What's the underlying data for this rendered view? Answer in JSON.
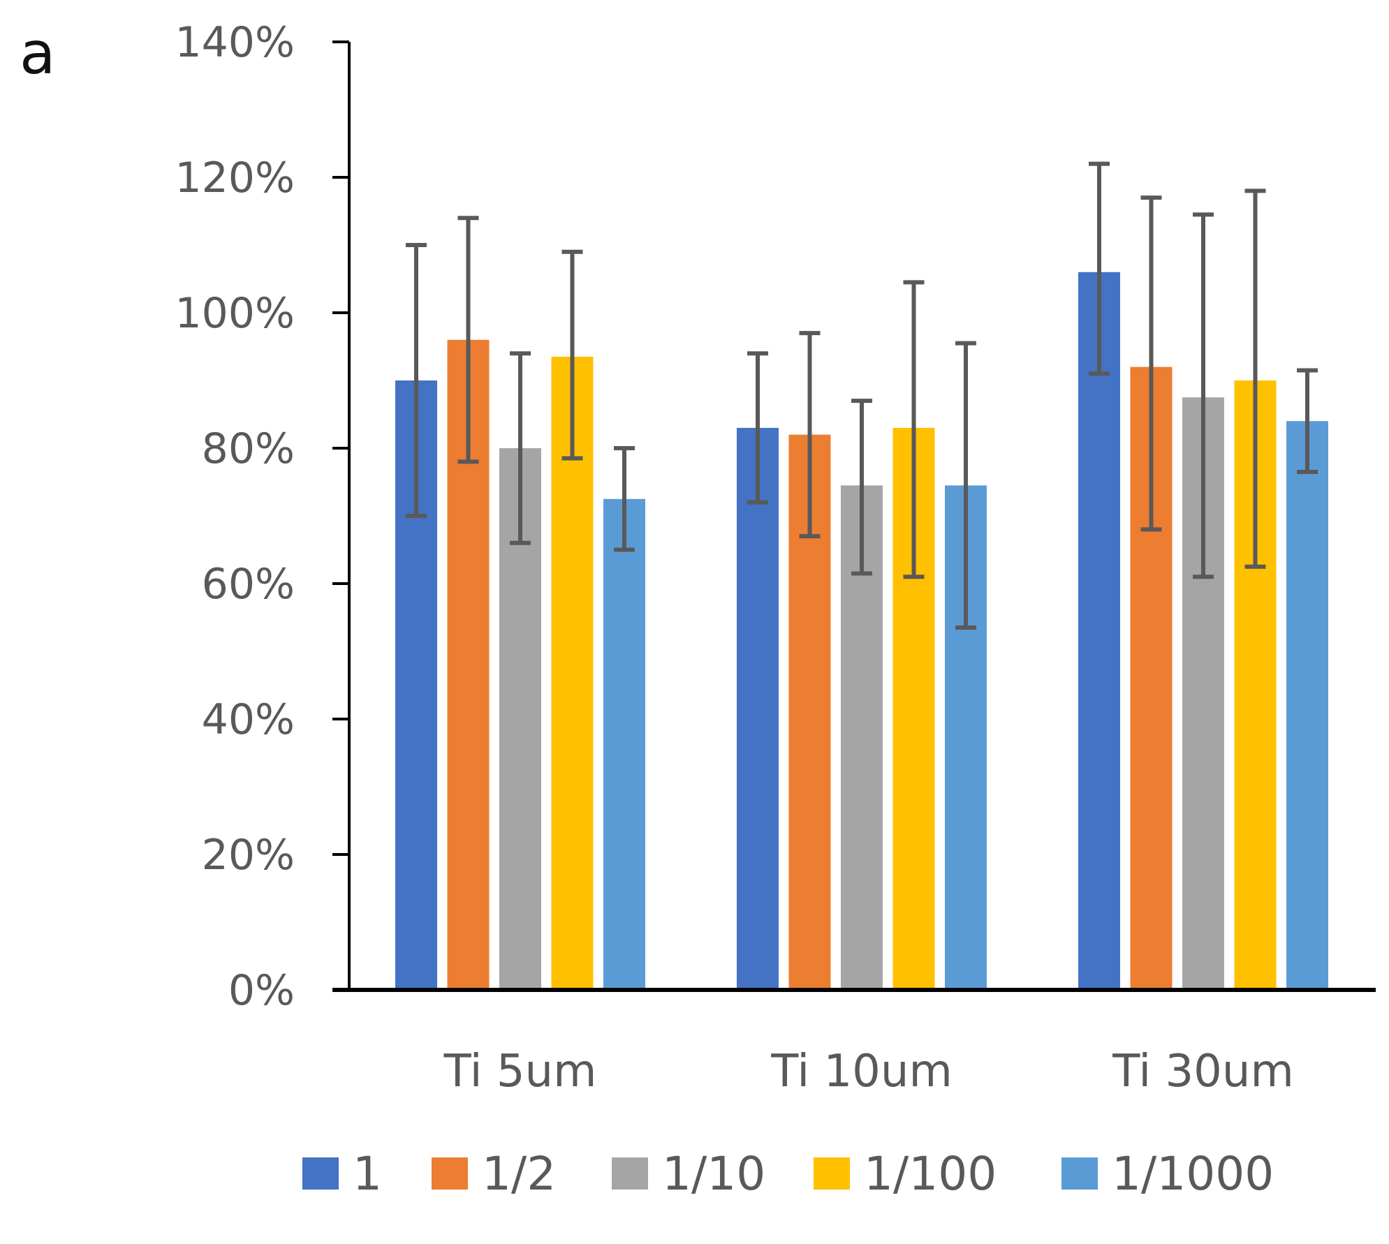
{
  "panel_label": "a",
  "chart_data": {
    "type": "bar",
    "title": "",
    "xlabel": "",
    "ylabel": "",
    "ylim": [
      0,
      1.4
    ],
    "yticks": [
      {
        "value": 0,
        "label": "0%"
      },
      {
        "value": 0.2,
        "label": "20%"
      },
      {
        "value": 0.4,
        "label": "40%"
      },
      {
        "value": 0.6,
        "label": "60%"
      },
      {
        "value": 0.8,
        "label": "80%"
      },
      {
        "value": 1.0,
        "label": "100%"
      },
      {
        "value": 1.2,
        "label": "120%"
      },
      {
        "value": 1.4,
        "label": "140%"
      }
    ],
    "categories": [
      "Ti 5um",
      "Ti 10um",
      "Ti 30um"
    ],
    "legend_position": "bottom",
    "series": [
      {
        "name": "1",
        "color": "#4472c4",
        "values": [
          0.9,
          0.83,
          1.06
        ],
        "err_low": [
          0.7,
          0.72,
          0.91
        ],
        "err_high": [
          1.1,
          0.94,
          1.22
        ]
      },
      {
        "name": "1/2",
        "color": "#ed7d31",
        "values": [
          0.96,
          0.82,
          0.92
        ],
        "err_low": [
          0.78,
          0.67,
          0.68
        ],
        "err_high": [
          1.14,
          0.97,
          1.17
        ]
      },
      {
        "name": "1/10",
        "color": "#a5a5a5",
        "values": [
          0.8,
          0.745,
          0.875
        ],
        "err_low": [
          0.66,
          0.615,
          0.61
        ],
        "err_high": [
          0.94,
          0.87,
          1.145
        ]
      },
      {
        "name": "1/100",
        "color": "#ffc000",
        "values": [
          0.935,
          0.83,
          0.9
        ],
        "err_low": [
          0.785,
          0.61,
          0.625
        ],
        "err_high": [
          1.09,
          1.045,
          1.18
        ]
      },
      {
        "name": "1/1000",
        "color": "#5b9bd5",
        "values": [
          0.725,
          0.745,
          0.84
        ],
        "err_low": [
          0.65,
          0.535,
          0.765
        ],
        "err_high": [
          0.8,
          0.955,
          0.915
        ]
      }
    ]
  }
}
